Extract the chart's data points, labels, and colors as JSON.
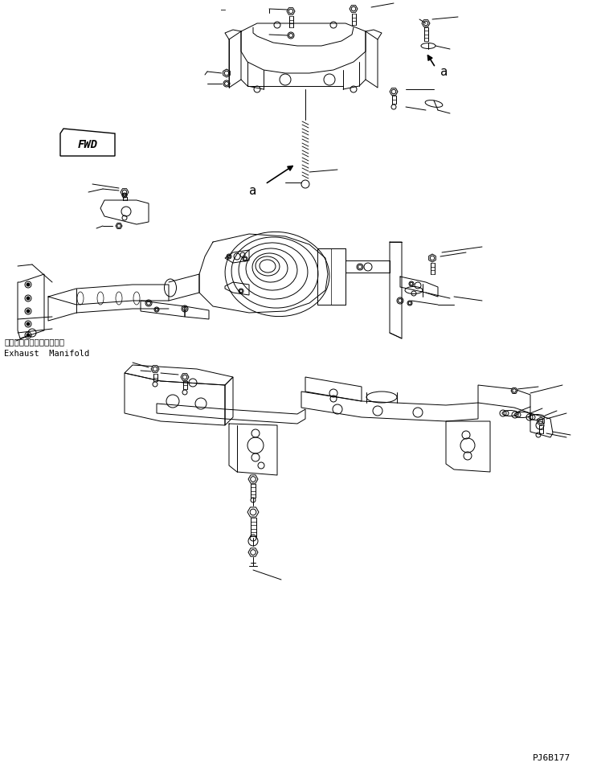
{
  "bg_color": "#ffffff",
  "line_color": "#000000",
  "fig_width": 7.43,
  "fig_height": 9.7,
  "dpi": 100,
  "label_a1": "a",
  "label_a2": "a",
  "label_fwd": "FWD",
  "label_exhaust_jp": "エキゾーストマニホールド",
  "label_exhaust_en": "Exhaust  Manifold",
  "label_partno": "PJ6B177"
}
